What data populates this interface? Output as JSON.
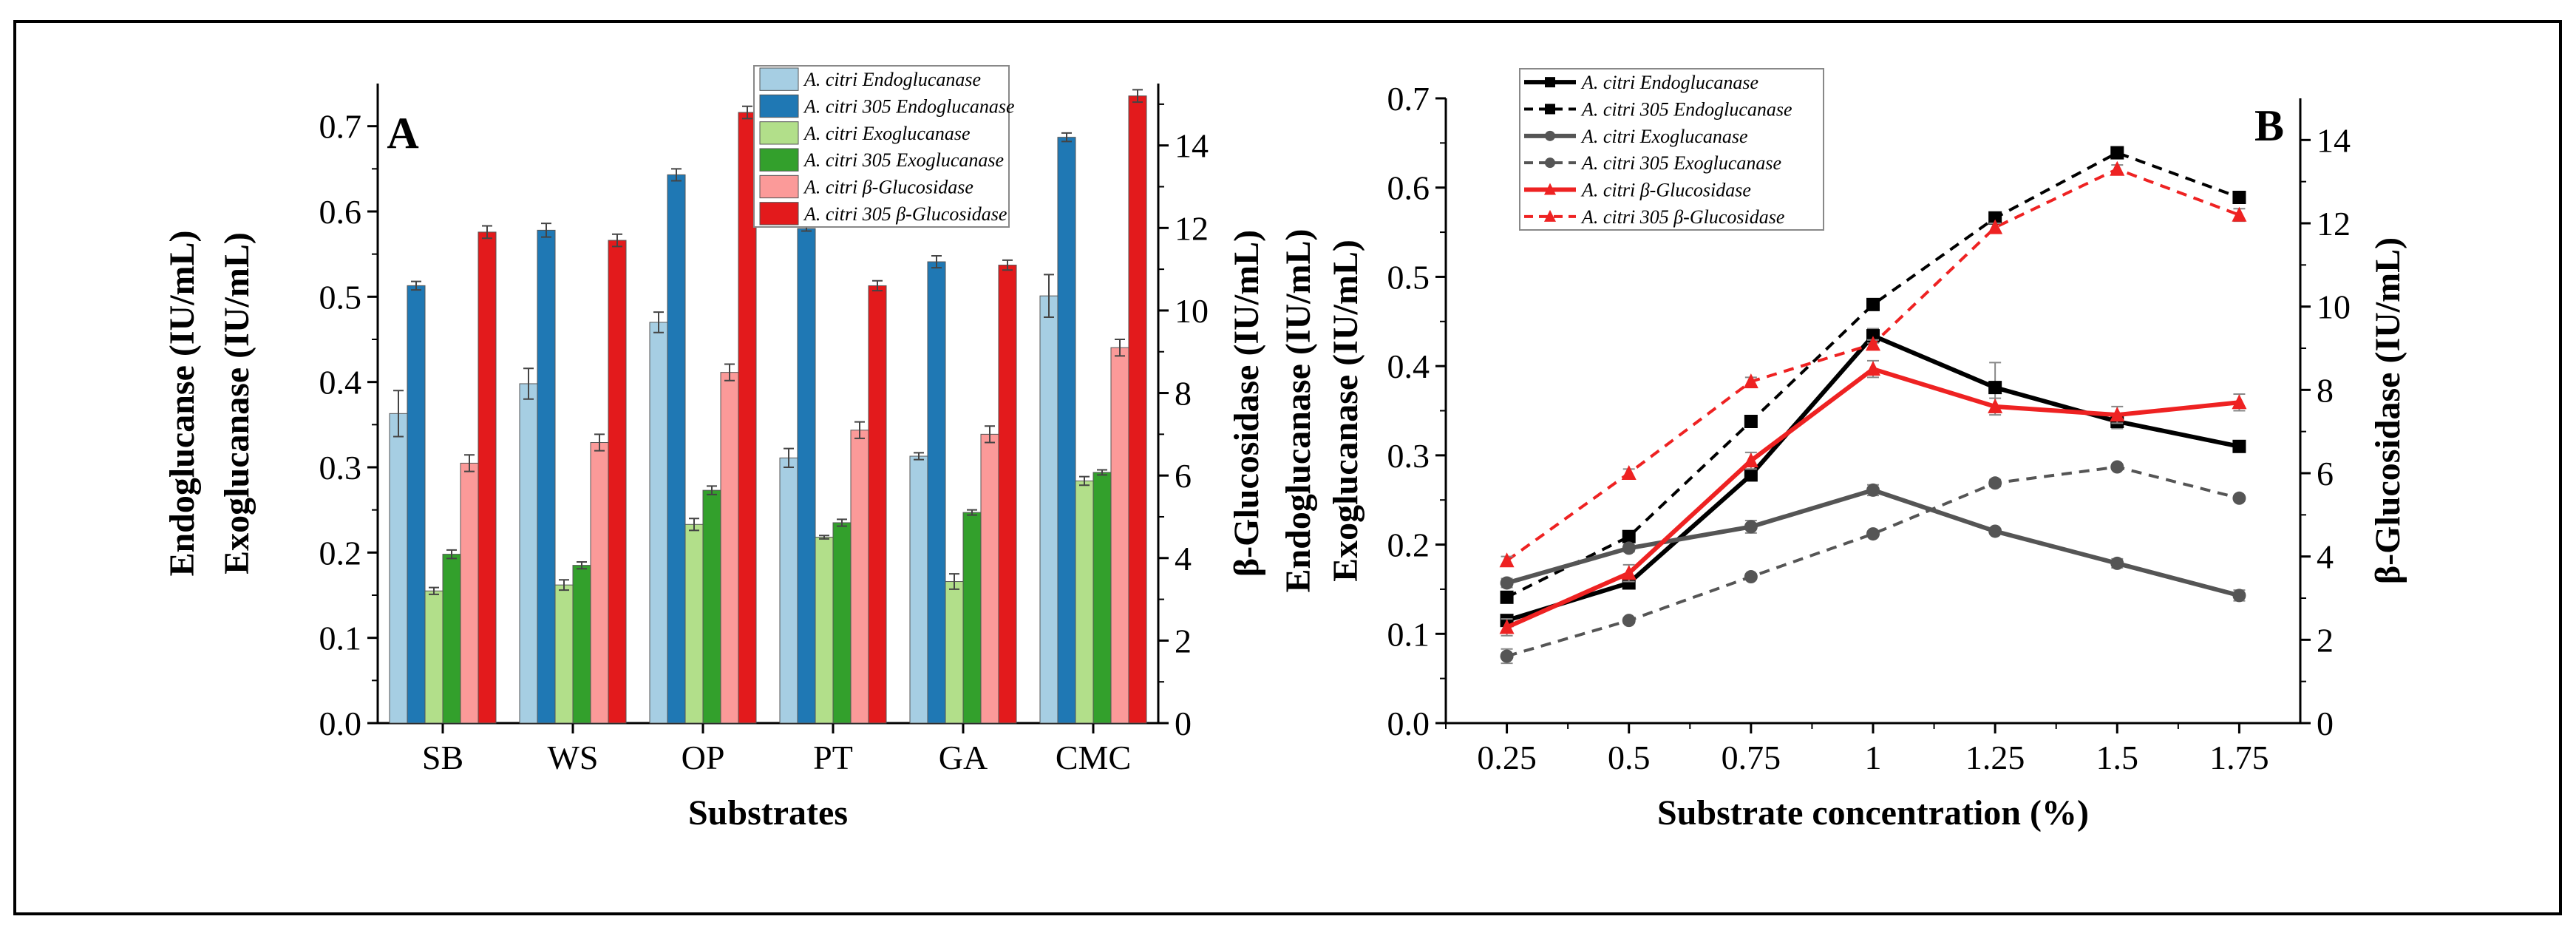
{
  "chart_data": [
    {
      "type": "bar",
      "panel_label": "A",
      "xlabel": "Substrates",
      "ylabel_lines": [
        "Endoglucanse (IU/mL)",
        "Exoglucanase (IU/mL)"
      ],
      "ylabel_right": "β-Glucosidase (IU/mL)",
      "categories": [
        "SB",
        "WS",
        "OP",
        "PT",
        "GA",
        "CMC"
      ],
      "ylim": [
        0,
        0.75
      ],
      "ylim_right": [
        0,
        15.5
      ],
      "yticks": [
        "0.0",
        "0.1",
        "0.2",
        "0.3",
        "0.4",
        "0.5",
        "0.6",
        "0.7"
      ],
      "yticks_right": [
        "0",
        "2",
        "4",
        "6",
        "8",
        "10",
        "12",
        "14"
      ],
      "legend_position": "top-right",
      "series": [
        {
          "name": "A. citri Endoglucanase",
          "axis": "left",
          "color": "#a6cee3",
          "values": [
            0.363,
            0.398,
            0.47,
            0.311,
            0.313,
            0.501
          ],
          "errors": [
            0.027,
            0.018,
            0.012,
            0.011,
            0.004,
            0.025
          ]
        },
        {
          "name": "A. citri 305 Endoglucanase",
          "axis": "left",
          "color": "#1f78b4",
          "values": [
            0.513,
            0.578,
            0.643,
            0.58,
            0.541,
            0.687
          ],
          "errors": [
            0.005,
            0.008,
            0.007,
            0.003,
            0.007,
            0.005
          ]
        },
        {
          "name": "A. citri Exoglucanase",
          "axis": "left",
          "color": "#b2df8a",
          "values": [
            0.155,
            0.162,
            0.233,
            0.218,
            0.166,
            0.284
          ],
          "errors": [
            0.004,
            0.006,
            0.007,
            0.002,
            0.009,
            0.005
          ]
        },
        {
          "name": "A. citri 305 Exoglucanase",
          "axis": "left",
          "color": "#33a02c",
          "values": [
            0.198,
            0.185,
            0.273,
            0.235,
            0.247,
            0.294
          ],
          "errors": [
            0.005,
            0.004,
            0.005,
            0.004,
            0.003,
            0.003
          ]
        },
        {
          "name": "A. citri β-Glucosidase",
          "axis": "right",
          "color": "#fb9a99",
          "values": [
            6.3,
            6.8,
            8.5,
            7.1,
            7.0,
            9.1
          ],
          "errors": [
            0.2,
            0.2,
            0.2,
            0.2,
            0.2,
            0.2
          ]
        },
        {
          "name": "A. citri 305 β-Glucosidase",
          "axis": "right",
          "color": "#e31a1c",
          "values": [
            11.9,
            11.7,
            14.8,
            10.6,
            11.1,
            15.2
          ],
          "errors": [
            0.15,
            0.15,
            0.15,
            0.12,
            0.12,
            0.15
          ]
        }
      ]
    },
    {
      "type": "line",
      "panel_label": "B",
      "xlabel": "Substrate concentration (%)",
      "ylabel_lines": [
        "Endoglucanase (IU/mL)",
        "Exoglucanase (IU/mL)"
      ],
      "ylabel_right": "β-Glucosidase (IU/mL)",
      "x": [
        "0.25",
        "0.5",
        "0.75",
        "1",
        "1.25",
        "1.5",
        "1.75"
      ],
      "ylim": [
        0,
        0.7
      ],
      "ylim_right": [
        0,
        15
      ],
      "yticks": [
        "0.0",
        "0.1",
        "0.2",
        "0.3",
        "0.4",
        "0.5",
        "0.6",
        "0.7"
      ],
      "yticks_right": [
        "0",
        "2",
        "4",
        "6",
        "8",
        "10",
        "12",
        "14"
      ],
      "legend_position": "top-left",
      "series": [
        {
          "name": "A. citri Endoglucanase",
          "axis": "left",
          "color": "#000000",
          "dash": false,
          "marker": "square",
          "values": [
            0.115,
            0.157,
            0.278,
            0.434,
            0.376,
            0.338,
            0.31
          ],
          "errors": [
            0.005,
            0.004,
            0.006,
            0.008,
            0.028,
            0.008,
            0.006
          ]
        },
        {
          "name": "A. citri 305 Endoglucanase",
          "axis": "left",
          "color": "#000000",
          "dash": true,
          "marker": "square",
          "values": [
            0.141,
            0.209,
            0.338,
            0.469,
            0.566,
            0.639,
            0.589
          ],
          "errors": [
            0.004,
            0.003,
            0.003,
            0.003,
            0.003,
            0.005,
            0.004
          ]
        },
        {
          "name": "A. citri Exoglucanase",
          "axis": "left",
          "color": "#555555",
          "dash": false,
          "marker": "circle",
          "values": [
            0.157,
            0.196,
            0.22,
            0.261,
            0.215,
            0.179,
            0.143
          ],
          "errors": [
            0.005,
            0.004,
            0.007,
            0.006,
            0.003,
            0.005,
            0.006
          ]
        },
        {
          "name": "A. citri 305 Exoglucanase",
          "axis": "left",
          "color": "#555555",
          "dash": true,
          "marker": "circle",
          "values": [
            0.075,
            0.115,
            0.164,
            0.212,
            0.269,
            0.287,
            0.252
          ],
          "errors": [
            0.008,
            0.003,
            0.003,
            0.003,
            0.004,
            0.003,
            0.003
          ]
        },
        {
          "name": "A. citri β-Glucosidase",
          "axis": "right",
          "color": "#ee2222",
          "dash": false,
          "marker": "triangle",
          "values": [
            2.3,
            3.6,
            6.3,
            8.5,
            7.6,
            7.4,
            7.7
          ],
          "errors": [
            0.2,
            0.2,
            0.2,
            0.2,
            0.2,
            0.2,
            0.2
          ]
        },
        {
          "name": "A. citri 305 β-Glucosidase",
          "axis": "right",
          "color": "#ee2222",
          "dash": true,
          "marker": "triangle",
          "values": [
            3.9,
            6.0,
            8.2,
            9.1,
            11.9,
            13.3,
            12.2
          ],
          "errors": [
            0.1,
            0.1,
            0.1,
            0.1,
            0.1,
            0.1,
            0.15
          ]
        }
      ]
    }
  ]
}
